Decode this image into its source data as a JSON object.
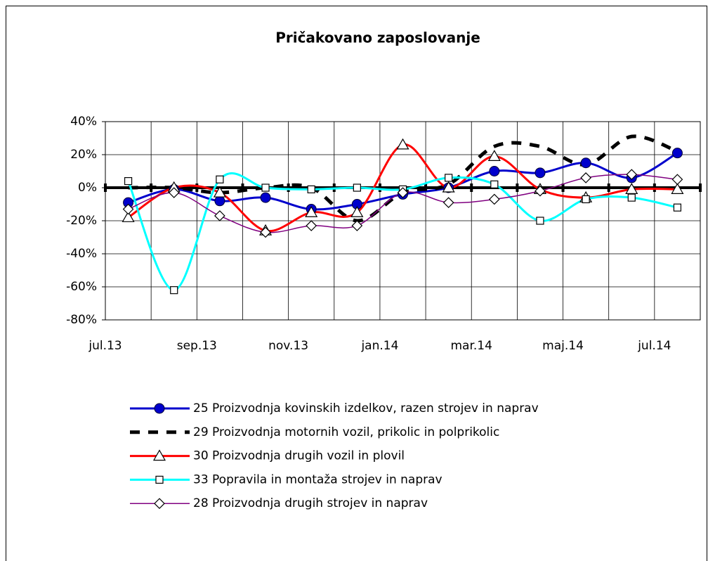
{
  "chart_data": {
    "type": "line",
    "title": "Pričakovano zaposlovanje",
    "categories": [
      "jul.13",
      null,
      "sep.13",
      null,
      "nov.13",
      null,
      "jan.14",
      null,
      "mar.14",
      null,
      "maj.14",
      null,
      "jul.14"
    ],
    "ylim": [
      -80,
      40
    ],
    "yticks": [
      {
        "value": -80,
        "label": "-80%"
      },
      {
        "value": -60,
        "label": "-60%"
      },
      {
        "value": -40,
        "label": "-40%"
      },
      {
        "value": -20,
        "label": "-20%"
      },
      {
        "value": 0,
        "label": "0%"
      },
      {
        "value": 20,
        "label": "20%"
      },
      {
        "value": 40,
        "label": "40%"
      }
    ],
    "grid": true,
    "series": [
      {
        "name": "25 Proizvodnja kovinskih izdelkov, razen strojev in naprav",
        "color": "#0000cc",
        "marker": "circle",
        "values": [
          -9,
          -1,
          -8,
          -6,
          -13,
          -10,
          -4,
          0,
          10,
          9,
          15,
          6,
          21
        ]
      },
      {
        "name": "29 Proizvodnja motornih vozil, prikolic in polprikolic",
        "color": "#000000",
        "dashed": true,
        "values": [
          0,
          0,
          -3,
          0,
          0,
          -20,
          -3,
          2,
          25,
          25,
          14,
          31,
          22
        ]
      },
      {
        "name": "30 Proizvodnja drugih vozil in plovil",
        "color": "#ff0000",
        "marker": "triangle",
        "values": [
          -18,
          0,
          -3,
          -26,
          -15,
          -15,
          26,
          0,
          19,
          -1,
          -6,
          -1,
          -1
        ]
      },
      {
        "name": "33 Popravila in montaža strojev in naprav",
        "color": "#00ffff",
        "marker": "square",
        "values": [
          4,
          -62,
          5,
          0,
          -1,
          0,
          -1,
          6,
          2,
          -20,
          -7,
          -6,
          -12
        ]
      },
      {
        "name": "28 Proizvodnja drugih strojev in naprav",
        "color": "#800080",
        "marker": "diamond",
        "values": [
          -13,
          -3,
          -17,
          -27,
          -23,
          -23,
          -3,
          -9,
          -7,
          -2,
          6,
          8,
          5
        ]
      }
    ]
  }
}
